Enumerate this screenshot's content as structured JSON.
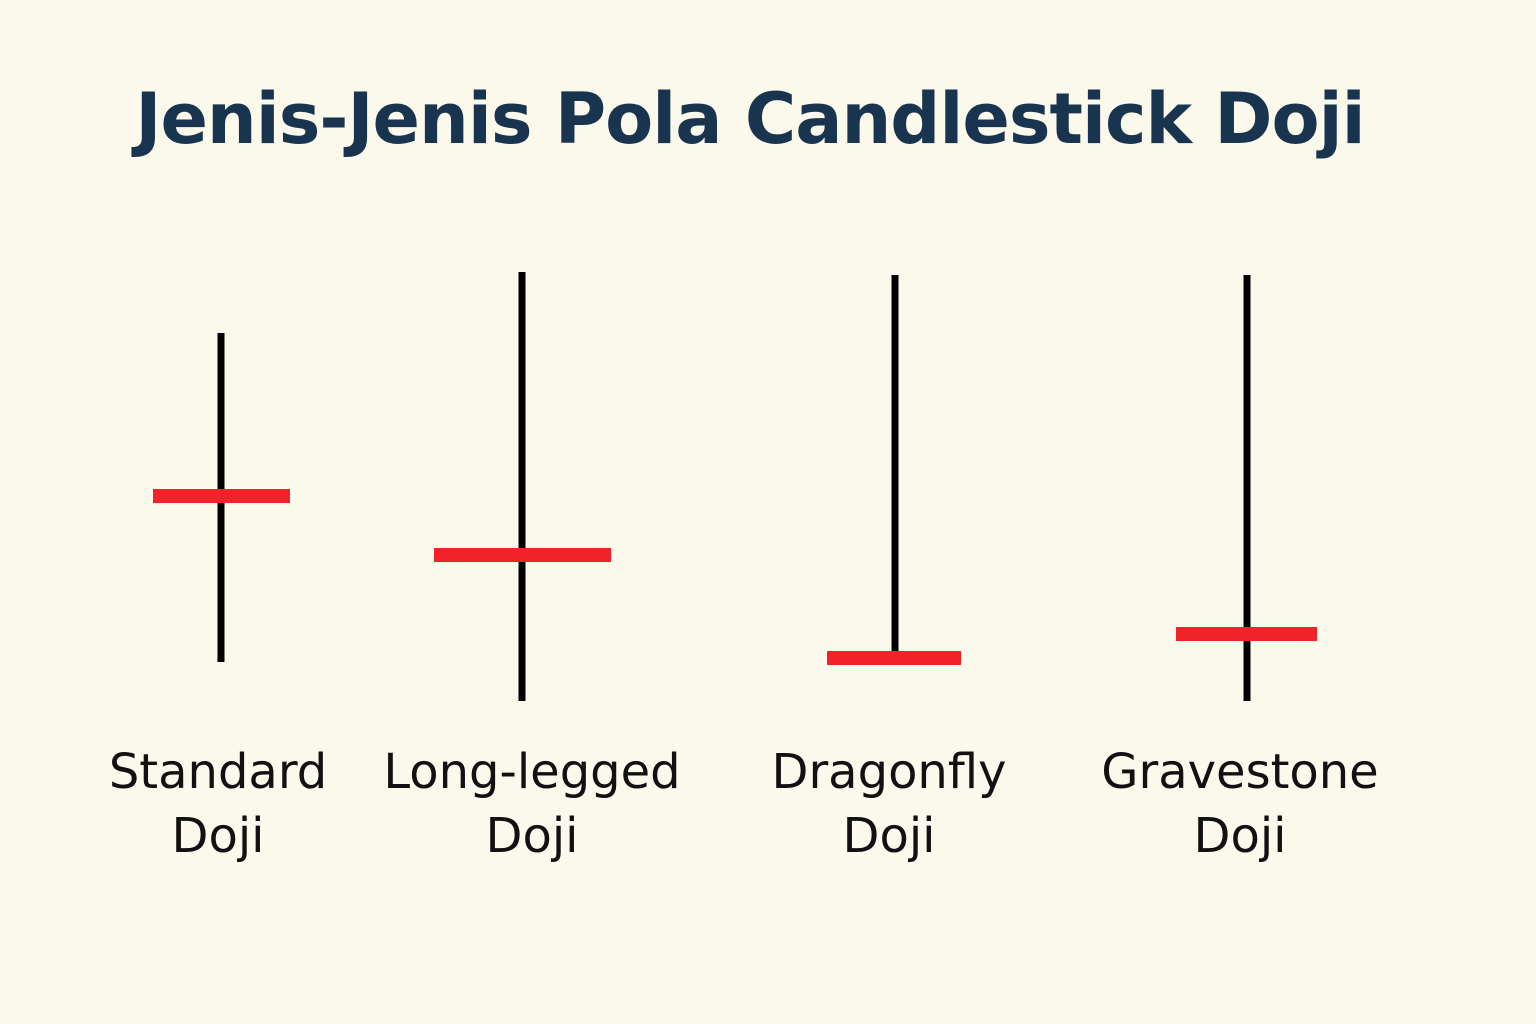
{
  "title": "Jenis-Jenis Pola Candlestick Doji",
  "colors": {
    "background": "#fbf8ec",
    "title": "#18344f",
    "wick": "#000000",
    "body": "#f2222b",
    "label": "#111111"
  },
  "candles": [
    {
      "label_line1": "Standard",
      "label_line2": "Doji"
    },
    {
      "label_line1": "Long-legged",
      "label_line2": "Doji"
    },
    {
      "label_line1": "Dragonfly",
      "label_line2": "Doji"
    },
    {
      "label_line1": "Gravestone",
      "label_line2": "Doji"
    }
  ]
}
